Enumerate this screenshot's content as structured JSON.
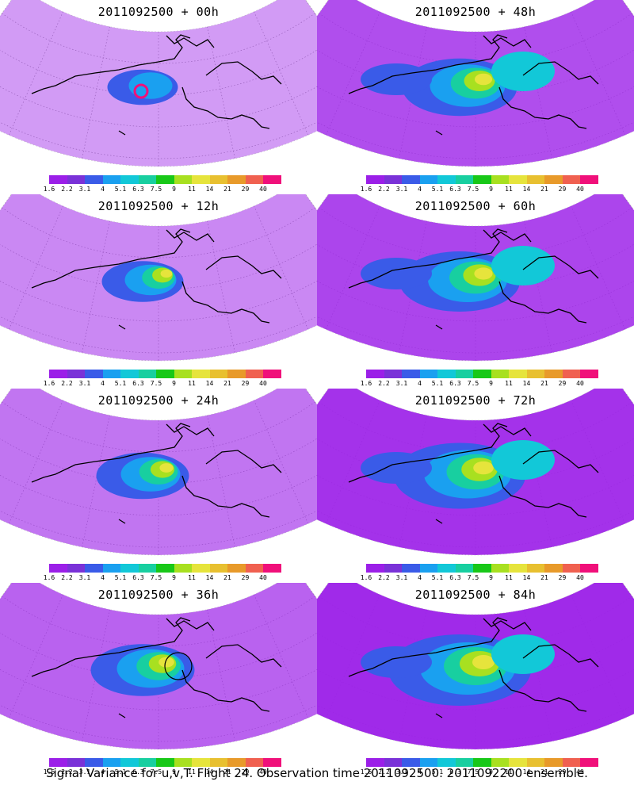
{
  "panels": [
    {
      "id": "p00",
      "title": "2011092500 + 00h",
      "intensity": 0.35,
      "marker": "pink-ring"
    },
    {
      "id": "p48",
      "title": "2011092500 + 48h",
      "intensity": 0.75
    },
    {
      "id": "p12",
      "title": "2011092500 + 12h",
      "intensity": 0.45
    },
    {
      "id": "p60",
      "title": "2011092500 + 60h",
      "intensity": 0.8
    },
    {
      "id": "p24",
      "title": "2011092500 + 24h",
      "intensity": 0.55
    },
    {
      "id": "p72",
      "title": "2011092500 + 72h",
      "intensity": 0.9
    },
    {
      "id": "p36",
      "title": "2011092500 + 36h",
      "intensity": 0.65,
      "marker": "black-ring"
    },
    {
      "id": "p84",
      "title": "2011092500 + 84h",
      "intensity": 1.0
    }
  ],
  "colorbar": {
    "ticks": [
      "1.6",
      "2.2",
      "3.1",
      "4",
      "5.1",
      "6.3",
      "7.5",
      "9",
      "11",
      "14",
      "21",
      "29",
      "40"
    ],
    "colors": [
      "#9b1fe8",
      "#7a32d8",
      "#3a5be8",
      "#1aa0f0",
      "#12c8d8",
      "#18cfa0",
      "#18c818",
      "#a8e020",
      "#e6e43c",
      "#e8c030",
      "#e89a2a",
      "#f06050",
      "#f0107a"
    ]
  },
  "footer": "Signal Variance for u,v,T. Flight 24. Observation time 2011092500. 2011092200 ensemble."
}
